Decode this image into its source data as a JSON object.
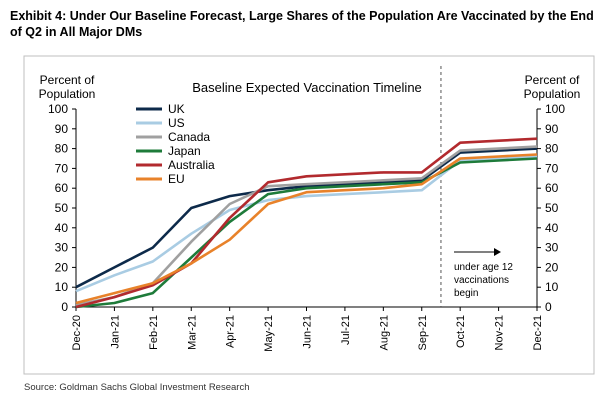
{
  "exhibit_title": "Exhibit 4: Under Our Baseline Forecast, Large Shares of the Population Are Vaccinated by the End of Q2 in All Major DMs",
  "source": "Source: Goldman Sachs Global Investment Research",
  "chart_data": {
    "type": "line",
    "title": "Baseline Expected Vaccination Timeline",
    "ylabel_left": [
      "Percent of",
      "Population"
    ],
    "ylabel_right": [
      "Percent of",
      "Population"
    ],
    "ylim": [
      0,
      100
    ],
    "yticks": [
      "0",
      "10",
      "20",
      "30",
      "40",
      "50",
      "60",
      "70",
      "80",
      "90",
      "100"
    ],
    "categories": [
      "Dec-20",
      "Jan-21",
      "Feb-21",
      "Mar-21",
      "Apr-21",
      "May-21",
      "Jun-21",
      "Jul-21",
      "Aug-21",
      "Sep-21",
      "Oct-21",
      "Nov-21",
      "Dec-21"
    ],
    "forecast_divider_after": "Sep-21",
    "annotation": [
      "under age 12",
      "vaccinations",
      "begin"
    ],
    "series": [
      {
        "name": "UK",
        "color": "#0d2a4a",
        "values": [
          10,
          20,
          30,
          50,
          56,
          59,
          61,
          62,
          63,
          64,
          78,
          79,
          80
        ]
      },
      {
        "name": "US",
        "color": "#a9cce3",
        "values": [
          8,
          16,
          23,
          37,
          49,
          54,
          56,
          57,
          58,
          59,
          74,
          75,
          76
        ]
      },
      {
        "name": "Canada",
        "color": "#a0a0a0",
        "values": [
          1,
          5,
          12,
          33,
          52,
          61,
          62,
          63,
          64,
          65,
          79,
          80,
          81
        ]
      },
      {
        "name": "Japan",
        "color": "#1e7b3a",
        "values": [
          0,
          2,
          7,
          25,
          43,
          57,
          60,
          61,
          62,
          63,
          73,
          74,
          75
        ]
      },
      {
        "name": "Australia",
        "color": "#b22a2e",
        "values": [
          0,
          5,
          11,
          22,
          45,
          63,
          66,
          67,
          68,
          68,
          83,
          84,
          85
        ]
      },
      {
        "name": "EU",
        "color": "#e8822a",
        "values": [
          2,
          7,
          12,
          22,
          34,
          52,
          58,
          59,
          60,
          62,
          75,
          76,
          77
        ]
      }
    ]
  }
}
